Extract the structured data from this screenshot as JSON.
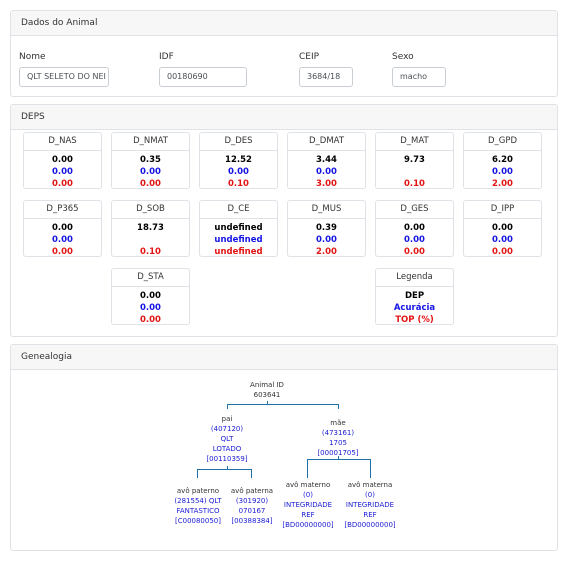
{
  "animal": {
    "header": "Dados do Animal",
    "fields": {
      "nome": {
        "label": "Nome",
        "value": "QLT SELETO DO NEI"
      },
      "idf": {
        "label": "IDF",
        "value": "00180690"
      },
      "ceip": {
        "label": "CEIP",
        "value": "3684/18"
      },
      "sexo": {
        "label": "Sexo",
        "value": "macho"
      }
    }
  },
  "deps": {
    "header": "DEPS",
    "items": [
      {
        "name": "D_NAS",
        "dep": "0.00",
        "acc": "0.00",
        "top": "0.00"
      },
      {
        "name": "D_NMAT",
        "dep": "0.35",
        "acc": "0.00",
        "top": "0.00"
      },
      {
        "name": "D_DES",
        "dep": "12.52",
        "acc": "0.00",
        "top": "0.10"
      },
      {
        "name": "D_DMAT",
        "dep": "3.44",
        "acc": "0.00",
        "top": "3.00"
      },
      {
        "name": "D_MAT",
        "dep": "9.73",
        "acc": "",
        "top": "0.10"
      },
      {
        "name": "D_GPD",
        "dep": "6.20",
        "acc": "0.00",
        "top": "2.00"
      },
      {
        "name": "D_P365",
        "dep": "0.00",
        "acc": "0.00",
        "top": "0.00"
      },
      {
        "name": "D_SOB",
        "dep": "18.73",
        "acc": "",
        "top": "0.10"
      },
      {
        "name": "D_CE",
        "dep": "undefined",
        "acc": "undefined",
        "top": "undefined"
      },
      {
        "name": "D_MUS",
        "dep": "0.39",
        "acc": "0.00",
        "top": "2.00"
      },
      {
        "name": "D_GES",
        "dep": "0.00",
        "acc": "0.00",
        "top": "0.00"
      },
      {
        "name": "D_IPP",
        "dep": "0.00",
        "acc": "0.00",
        "top": "0.00"
      },
      {
        "name": "D_STA",
        "dep": "0.00",
        "acc": "0.00",
        "top": "0.00"
      }
    ],
    "legend": {
      "title": "Legenda",
      "dep": "DEP",
      "acc": "Acurácia",
      "top": "TOP (%)"
    }
  },
  "genealogia": {
    "header": "Genealogia",
    "root": {
      "label": "Animal ID",
      "id": "603641"
    },
    "pai": {
      "label": "pai",
      "lines": [
        "(407120)",
        "QLT",
        "LOTADO",
        "[00110359]"
      ]
    },
    "mae": {
      "label": "mãe",
      "lines": [
        "(473161)",
        "1705",
        "[00001705]"
      ]
    },
    "avo_paterno_p": {
      "label": "avô paterno",
      "lines": [
        "(281554) QLT",
        "FANTASTICO",
        "[C00080050]"
      ]
    },
    "avo_paterna_p": {
      "label": "avô paterna",
      "lines": [
        "(301920)",
        "070167",
        "[00388384]"
      ]
    },
    "avo_materno_m": {
      "label": "avô materno",
      "lines": [
        "(0)",
        "INTEGRIDADE",
        "REF",
        "[BD00000000]"
      ]
    },
    "avo_materna_m": {
      "label": "avô materna",
      "lines": [
        "(0)",
        "INTEGRIDADE",
        "REF",
        "[BD00000000]"
      ]
    }
  },
  "colors": {
    "dep": "#000000",
    "acc": "#1414e6",
    "top": "#e31414",
    "tree_line": "#1f6fa8"
  }
}
